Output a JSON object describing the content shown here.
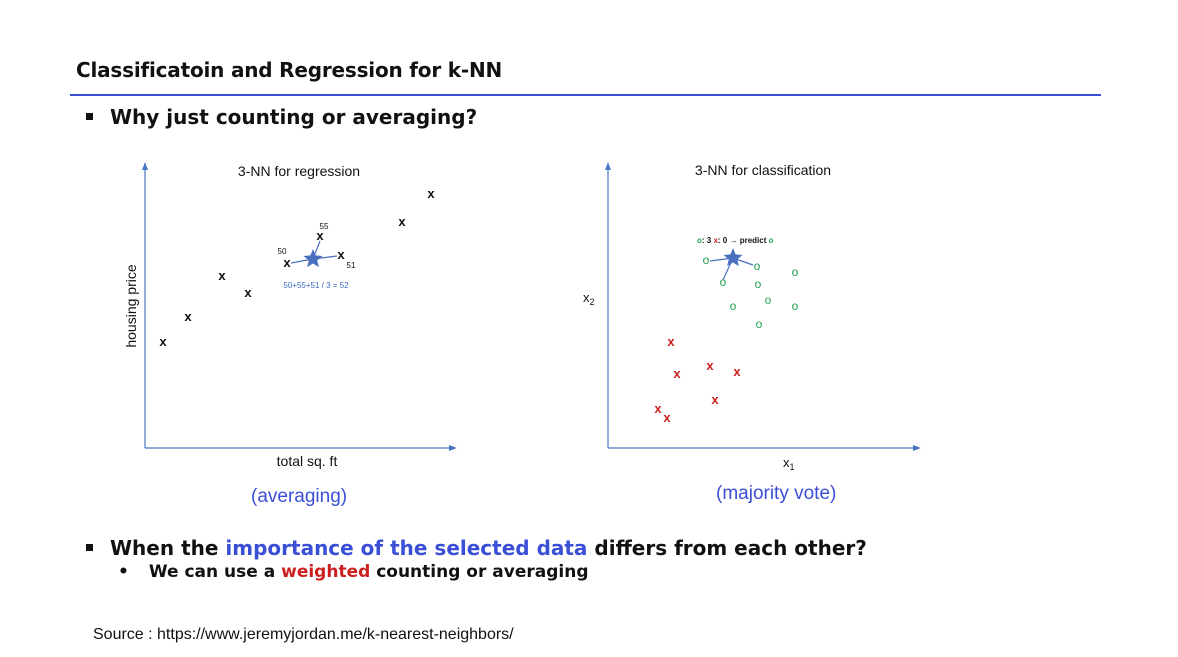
{
  "slide": {
    "title": "Classificatoin and Regression for k-NN",
    "bullet1": "Why just counting or averaging?",
    "bullet2": {
      "pre": "When the ",
      "highlight": "importance of the selected data",
      "post": " differs from each other?"
    },
    "sub_bullet": {
      "pre": "We can use a ",
      "highlight": "weighted",
      "post": " counting or averaging"
    },
    "source": "Source : https://www.jeremyjordan.me/k-nearest-neighbors/",
    "colors": {
      "accent_blue": "#3b4fd6",
      "red": "#cc1f1f",
      "green": "#22a052",
      "axis": "#4a78c2",
      "star": "#4a6fbf"
    }
  },
  "regression": {
    "title": "3-NN for regression",
    "xlabel": "total sq. ft",
    "ylabel": "housing price",
    "caption": "(averaging)",
    "point_marker": "x",
    "neighbor_labels": [
      "55",
      "50",
      "51"
    ],
    "formula": "50+55+51 / 3 = 52"
  },
  "classification": {
    "title": "3-NN for classification",
    "xlabel": "x",
    "xlabel_sub": "1",
    "ylabel": "x",
    "ylabel_sub": "2",
    "caption": "(majority vote)",
    "vote": {
      "o_sym": "o",
      "o_text": ": 3 ",
      "x_sym": "x",
      "x_text": ": 0 ",
      "arrow": "→",
      "predict": " predict ",
      "result": "o"
    },
    "green_marker": "o",
    "red_marker": "x"
  }
}
